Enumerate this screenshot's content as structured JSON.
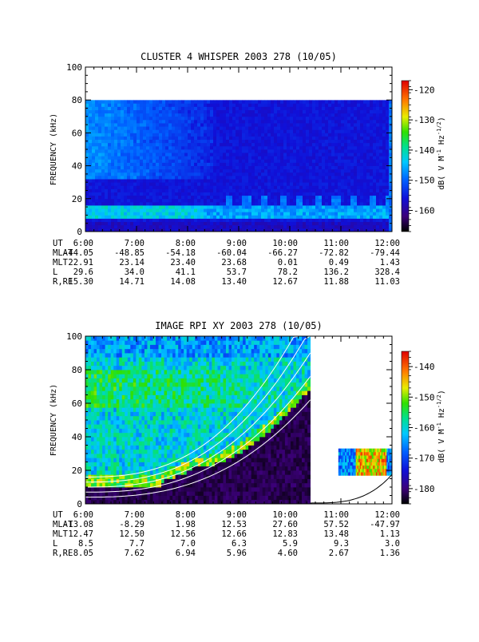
{
  "chart_data": [
    {
      "type": "heatmap",
      "title": "CLUSTER 4 WHISPER 2003 278 (10/05)",
      "ylabel": "FREQUENCY (kHz)",
      "colorbar_label": "dB( V M⁻¹ Hz⁻¹ᐟ²)",
      "colorbar_label_parts": {
        "prefix": "dB( V M",
        "m_exp": "-1",
        "hz": " Hz",
        "hz_exp": "-1/2",
        "suffix": ")"
      },
      "x_ticks": [
        "6:00",
        "7:00",
        "8:00",
        "9:00",
        "10:00",
        "11:00",
        "12:00"
      ],
      "x_range_hours": [
        6,
        12
      ],
      "y_ticks": [
        "0",
        "20",
        "40",
        "60",
        "80",
        "100"
      ],
      "ylim": [
        0,
        100
      ],
      "data_top_kHz": 80,
      "colorbar_ticks": [
        "-120",
        "-130",
        "-140",
        "-150",
        "-160"
      ],
      "colorbar_range": [
        -167,
        -117
      ],
      "ephemeris": {
        "labels": [
          "UT",
          "MLAT",
          "MLT",
          "L",
          "R,RE"
        ],
        "rows": [
          [
            "6:00",
            "7:00",
            "8:00",
            "9:00",
            "10:00",
            "11:00",
            "12:00"
          ],
          [
            "-44.05",
            "-48.85",
            "-54.18",
            "-60.04",
            "-66.27",
            "-72.82",
            "-79.44"
          ],
          [
            "22.91",
            "23.14",
            "23.40",
            "23.68",
            "0.01",
            "0.49",
            "1.43"
          ],
          [
            "29.6",
            "34.0",
            "41.1",
            "53.7",
            "78.2",
            "136.2",
            "328.4"
          ],
          [
            "15.30",
            "14.71",
            "14.08",
            "13.40",
            "12.67",
            "11.88",
            "11.03"
          ]
        ]
      }
    },
    {
      "type": "heatmap",
      "title": "IMAGE RPI XY 2003 278 (10/05)",
      "ylabel": "FREQUENCY (kHz)",
      "colorbar_label": "dB( V M⁻¹ Hz⁻¹ᐟ²)",
      "colorbar_label_parts": {
        "prefix": "dB( V M",
        "m_exp": "-1",
        "hz": " Hz",
        "hz_exp": "-1/2",
        "suffix": ")"
      },
      "x_ticks": [
        "6:00",
        "7:00",
        "8:00",
        "9:00",
        "10:00",
        "11:00",
        "12:00"
      ],
      "x_range_hours": [
        6,
        12
      ],
      "y_ticks": [
        "0",
        "20",
        "40",
        "60",
        "80",
        "100"
      ],
      "ylim": [
        0,
        100
      ],
      "colorbar_ticks": [
        "-140",
        "-150",
        "-160",
        "-170",
        "-180"
      ],
      "colorbar_range": [
        -185,
        -135
      ],
      "data_gap_hours": [
        10.4,
        10.95
      ],
      "late_band_kHz": [
        17,
        33
      ],
      "ephemeris": {
        "labels": [
          "UT",
          "MLAT",
          "MLT",
          "L",
          "R,RE"
        ],
        "rows": [
          [
            "6:00",
            "7:00",
            "8:00",
            "9:00",
            "10:00",
            "11:00",
            "12:00"
          ],
          [
            "-13.08",
            "-8.29",
            "1.98",
            "12.53",
            "27.60",
            "57.52",
            "-47.97"
          ],
          [
            "12.47",
            "12.50",
            "12.56",
            "12.66",
            "12.83",
            "13.48",
            "1.13"
          ],
          [
            "8.5",
            "7.7",
            "7.0",
            "6.3",
            "5.9",
            "9.3",
            "3.0"
          ],
          [
            "8.05",
            "7.62",
            "6.94",
            "5.96",
            "4.60",
            "2.67",
            "1.36"
          ]
        ]
      }
    }
  ]
}
